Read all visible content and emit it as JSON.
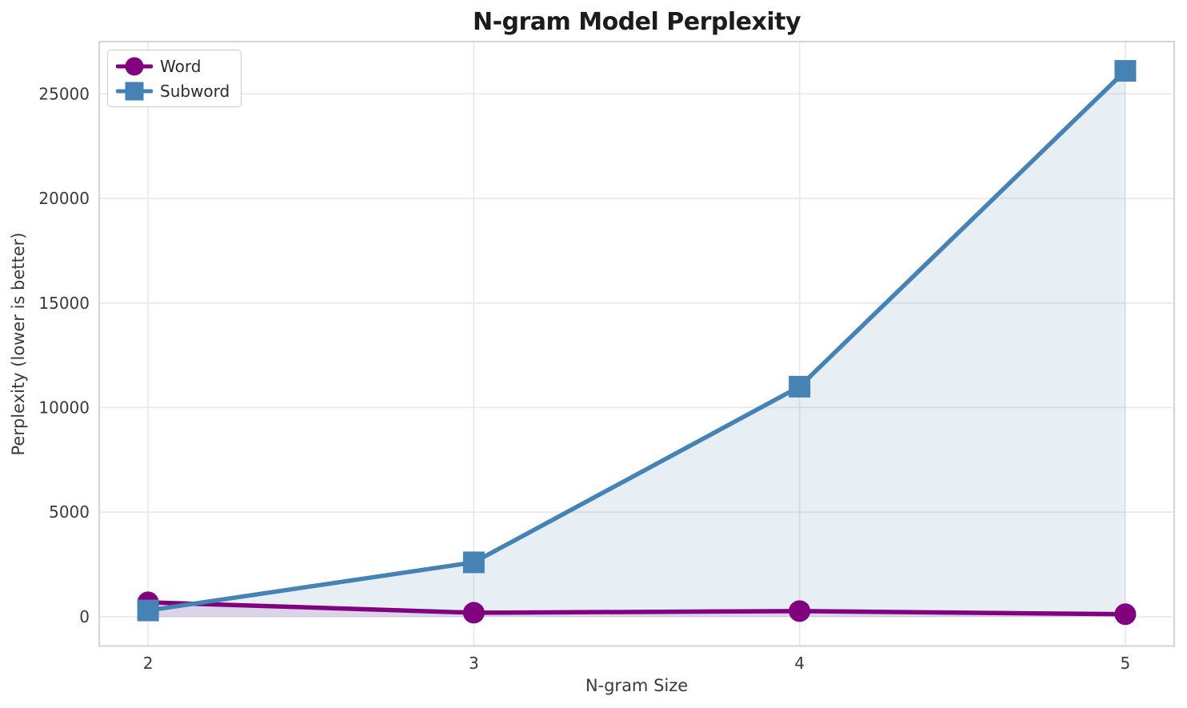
{
  "chart_data": {
    "type": "line",
    "title": "N-gram Model Perplexity",
    "xlabel": "N-gram Size",
    "ylabel": "Perplexity (lower is better)",
    "x": [
      2,
      3,
      4,
      5
    ],
    "x_tick_labels": [
      "2",
      "3",
      "4",
      "5"
    ],
    "y_ticks": [
      0,
      5000,
      10000,
      15000,
      20000,
      25000
    ],
    "y_tick_labels": [
      "0",
      "5000",
      "10000",
      "15000",
      "20000",
      "25000"
    ],
    "xlim": [
      1.85,
      5.15
    ],
    "ylim": [
      -1400,
      27500
    ],
    "grid": true,
    "legend_position": "upper left",
    "series": [
      {
        "name": "Word",
        "marker": "circle",
        "color": "#800080",
        "fill_color": "rgba(128,0,128,0.12)",
        "values": [
          690,
          190,
          270,
          120
        ]
      },
      {
        "name": "Subword",
        "marker": "square",
        "color": "#4682B4",
        "fill_color": "rgba(70,130,180,0.13)",
        "values": [
          300,
          2600,
          11000,
          26100
        ]
      }
    ],
    "colors": {
      "grid": "#e8e8e8",
      "spine": "#d4d4d4",
      "tick_text": "#3a3a3a"
    }
  }
}
